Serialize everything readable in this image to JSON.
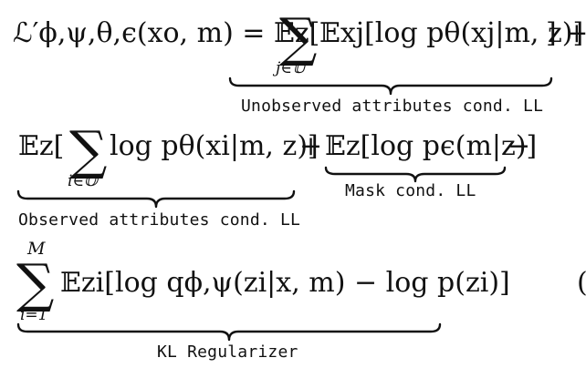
{
  "equation": {
    "line1": {
      "lhs": "ℒ′ϕ,ψ,θ,ϵ(xo, m) = 𝔼z[",
      "sum": "∑",
      "sum_sub": "j∈𝕌",
      "body": "𝔼xj[log pθ(xj|m, z)]",
      "tail": "] +"
    },
    "line2": {
      "lead": "𝔼z[",
      "sum": "∑",
      "sum_sub": "i∈𝕆",
      "body": "log pθ(xi|m, z)]",
      "plus": "+",
      "mask_term": "𝔼z[log pϵ(m|z)]",
      "minus": "−"
    },
    "line3": {
      "sum": "∑",
      "sum_sup": "M",
      "sum_sub": "i=1",
      "body": "𝔼zi[log qϕ,ψ(zi|x, m) − log p(zi)]",
      "eq_number_fragment": "("
    },
    "annotations": {
      "unobserved": "Unobserved attributes cond. LL",
      "observed": "Observed attributes cond. LL",
      "mask": "Mask cond. LL",
      "kl": "KL Regularizer"
    }
  }
}
